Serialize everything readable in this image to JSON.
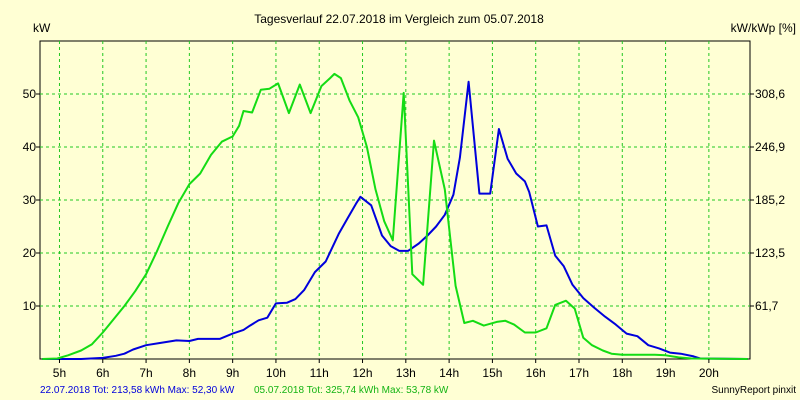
{
  "chart_data": {
    "type": "line",
    "title": "Tagesverlauf 22.07.2018 im Vergleich zum 05.07.2018",
    "ylabel": "kW",
    "y2label": "kW/kWp [%]",
    "ylim": [
      0,
      60
    ],
    "xlim": [
      4.55,
      20.95
    ],
    "grid": true,
    "y_ticks": [
      "10",
      "20",
      "30",
      "40",
      "50"
    ],
    "y2_ticks": [
      "61,7",
      "123,5",
      "185,2",
      "246,9",
      "308,6"
    ],
    "x_ticks": [
      {
        "value": 5,
        "label": "5h"
      },
      {
        "value": 6,
        "label": "6h"
      },
      {
        "value": 7,
        "label": "7h"
      },
      {
        "value": 8,
        "label": "8h"
      },
      {
        "value": 9,
        "label": "9h"
      },
      {
        "value": 10,
        "label": "10h"
      },
      {
        "value": 11,
        "label": "11h"
      },
      {
        "value": 12,
        "label": "12h"
      },
      {
        "value": 13,
        "label": "13h"
      },
      {
        "value": 14,
        "label": "14h"
      },
      {
        "value": 15,
        "label": "15h"
      },
      {
        "value": 16,
        "label": "16h"
      },
      {
        "value": 17,
        "label": "17h"
      },
      {
        "value": 18,
        "label": "18h"
      },
      {
        "value": 19,
        "label": "19h"
      },
      {
        "value": 20,
        "label": "20h"
      }
    ],
    "series": [
      {
        "name": "22.07.2018",
        "color": "#0000dc",
        "points": [
          [
            4.6,
            0
          ],
          [
            5.5,
            0
          ],
          [
            6.0,
            0.2
          ],
          [
            6.3,
            0.6
          ],
          [
            6.5,
            1
          ],
          [
            6.7,
            1.8
          ],
          [
            7.0,
            2.6
          ],
          [
            7.3,
            3
          ],
          [
            7.7,
            3.5
          ],
          [
            8.0,
            3.4
          ],
          [
            8.2,
            3.8
          ],
          [
            8.7,
            3.8
          ],
          [
            9.0,
            4.8
          ],
          [
            9.25,
            5.5
          ],
          [
            9.4,
            6.3
          ],
          [
            9.6,
            7.3
          ],
          [
            9.8,
            7.8
          ],
          [
            10.0,
            10.5
          ],
          [
            10.25,
            10.6
          ],
          [
            10.45,
            11.3
          ],
          [
            10.65,
            13
          ],
          [
            10.9,
            16.4
          ],
          [
            11.15,
            18.4
          ],
          [
            11.45,
            23.6
          ],
          [
            11.65,
            26.5
          ],
          [
            11.85,
            29.3
          ],
          [
            11.95,
            30.6
          ],
          [
            12.2,
            29
          ],
          [
            12.45,
            23.3
          ],
          [
            12.65,
            21.3
          ],
          [
            12.85,
            20.4
          ],
          [
            13.05,
            20.4
          ],
          [
            13.3,
            21.8
          ],
          [
            13.5,
            23.3
          ],
          [
            13.7,
            25
          ],
          [
            13.9,
            27.2
          ],
          [
            14.1,
            31
          ],
          [
            14.25,
            38
          ],
          [
            14.45,
            52.3
          ],
          [
            14.7,
            31.2
          ],
          [
            14.95,
            31.2
          ],
          [
            15.15,
            43.4
          ],
          [
            15.35,
            37.8
          ],
          [
            15.55,
            35
          ],
          [
            15.75,
            33.5
          ],
          [
            15.85,
            31.5
          ],
          [
            16.05,
            25
          ],
          [
            16.25,
            25.2
          ],
          [
            16.45,
            19.5
          ],
          [
            16.65,
            17.5
          ],
          [
            16.85,
            14
          ],
          [
            17.1,
            11.5
          ],
          [
            17.35,
            9.7
          ],
          [
            17.6,
            8
          ],
          [
            17.85,
            6.5
          ],
          [
            18.1,
            4.8
          ],
          [
            18.35,
            4.3
          ],
          [
            18.6,
            2.6
          ],
          [
            18.85,
            2
          ],
          [
            19.1,
            1.2
          ],
          [
            19.35,
            1
          ],
          [
            19.65,
            0.5
          ],
          [
            19.8,
            0.1
          ],
          [
            20.9,
            0
          ]
        ]
      },
      {
        "name": "05.07.2018",
        "color": "#14dc14",
        "points": [
          [
            4.6,
            0
          ],
          [
            4.95,
            0.1
          ],
          [
            5.2,
            0.7
          ],
          [
            5.5,
            1.6
          ],
          [
            5.75,
            2.8
          ],
          [
            6.0,
            5
          ],
          [
            6.25,
            7.5
          ],
          [
            6.5,
            10
          ],
          [
            6.75,
            12.8
          ],
          [
            7.0,
            16
          ],
          [
            7.25,
            20.3
          ],
          [
            7.5,
            25
          ],
          [
            7.75,
            29.5
          ],
          [
            8.0,
            33
          ],
          [
            8.25,
            35
          ],
          [
            8.5,
            38.5
          ],
          [
            8.75,
            41
          ],
          [
            9.0,
            42
          ],
          [
            9.15,
            44
          ],
          [
            9.25,
            46.8
          ],
          [
            9.45,
            46.5
          ],
          [
            9.65,
            50.8
          ],
          [
            9.85,
            51
          ],
          [
            10.05,
            52
          ],
          [
            10.3,
            46.4
          ],
          [
            10.55,
            51.8
          ],
          [
            10.8,
            46.4
          ],
          [
            11.05,
            51.5
          ],
          [
            11.25,
            53
          ],
          [
            11.35,
            53.8
          ],
          [
            11.5,
            53
          ],
          [
            11.7,
            48.8
          ],
          [
            11.9,
            45.6
          ],
          [
            12.1,
            40
          ],
          [
            12.3,
            32
          ],
          [
            12.5,
            26
          ],
          [
            12.7,
            22.4
          ],
          [
            12.95,
            50.2
          ],
          [
            13.15,
            16
          ],
          [
            13.4,
            14
          ],
          [
            13.65,
            41.2
          ],
          [
            13.9,
            32
          ],
          [
            14.15,
            13.8
          ],
          [
            14.35,
            6.8
          ],
          [
            14.55,
            7.2
          ],
          [
            14.8,
            6.3
          ],
          [
            15.1,
            7
          ],
          [
            15.3,
            7.2
          ],
          [
            15.5,
            6.5
          ],
          [
            15.75,
            5
          ],
          [
            16.0,
            5
          ],
          [
            16.25,
            5.8
          ],
          [
            16.45,
            10.2
          ],
          [
            16.7,
            11
          ],
          [
            16.9,
            9.5
          ],
          [
            17.1,
            4
          ],
          [
            17.3,
            2.6
          ],
          [
            17.55,
            1.6
          ],
          [
            17.75,
            1
          ],
          [
            18.0,
            0.8
          ],
          [
            18.3,
            0.8
          ],
          [
            18.55,
            0.8
          ],
          [
            18.75,
            0.8
          ],
          [
            19.0,
            0.7
          ],
          [
            19.3,
            0.3
          ],
          [
            19.6,
            0.1
          ],
          [
            20.9,
            0
          ]
        ]
      }
    ]
  },
  "footer": {
    "series1_text": "22.07.2018 Tot: 213,58 kWh Max: 52,30 kW",
    "series2_text": "05.07.2018 Tot: 325,74 kWh Max: 53,78 kW",
    "credit": "SunnyReport pinxit"
  }
}
